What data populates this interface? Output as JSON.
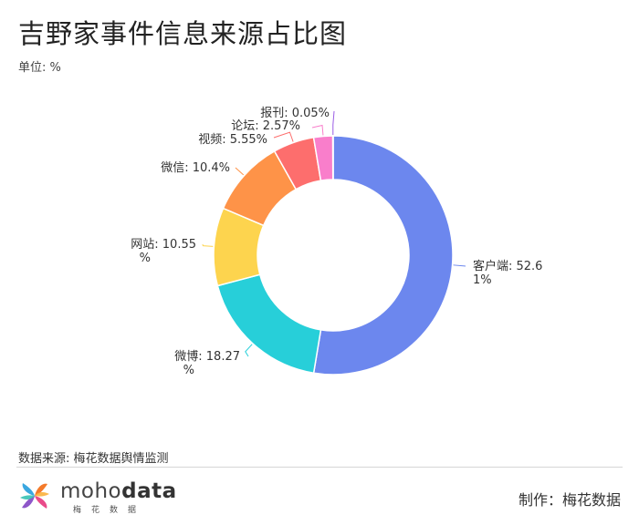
{
  "title": "吉野家事件信息来源占比图",
  "unit": "单位: %",
  "source": "数据来源: 梅花数据舆情监测",
  "credit": "制作：梅花数据",
  "logo": {
    "text_light": "moho",
    "text_bold": "data",
    "subtitle": "梅花数据"
  },
  "chart_data": {
    "type": "pie",
    "variant": "donut",
    "slices": [
      {
        "label": "客户端",
        "value": 52.61,
        "text": "客户端: 52.61%",
        "color": "#6c87ee"
      },
      {
        "label": "微博",
        "value": 18.27,
        "text": "微博: 18.27%",
        "color": "#27cfd9"
      },
      {
        "label": "网站",
        "value": 10.55,
        "text": "网站: 10.55%",
        "color": "#fdd44e"
      },
      {
        "label": "微信",
        "value": 10.4,
        "text": "微信: 10.4%",
        "color": "#fe9348"
      },
      {
        "label": "视频",
        "value": 5.55,
        "text": "视频: 5.55%",
        "color": "#fd6e6d"
      },
      {
        "label": "论坛",
        "value": 2.57,
        "text": "论坛: 2.57%",
        "color": "#f97ecb"
      },
      {
        "label": "报刊",
        "value": 0.05,
        "text": "报刊: 0.05%",
        "color": "#9b5de5"
      }
    ]
  }
}
